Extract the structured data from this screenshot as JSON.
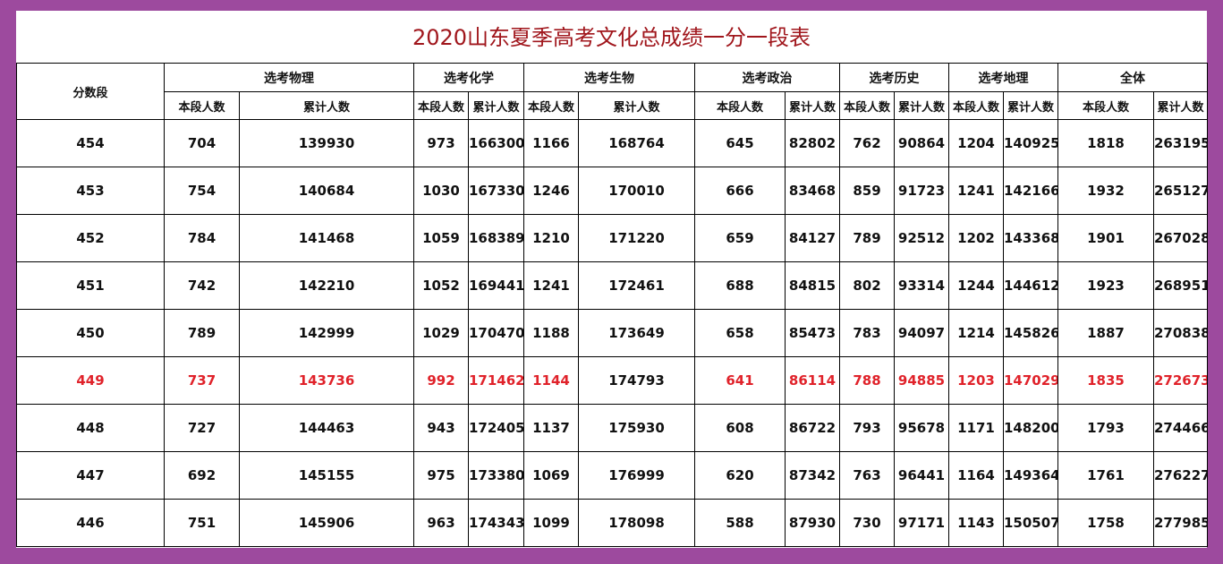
{
  "title": "2020山东夏季高考文化总成绩一分一段表",
  "score_header": "分数段",
  "groups": [
    "选考物理",
    "选考化学",
    "选考生物",
    "选考政治",
    "选考历史",
    "选考地理",
    "全体"
  ],
  "subheaders": [
    "本段人数",
    "累计人数",
    "本段人数",
    "累计人数",
    "本段人数",
    "累计人数",
    "本段人数",
    "累计人数",
    "本段人数",
    "累计人数",
    "本段人数",
    "累计人数",
    "本段人数",
    "累计人数"
  ],
  "rows": [
    [
      454,
      704,
      139930,
      973,
      166300,
      1166,
      168764,
      645,
      82802,
      762,
      90864,
      1204,
      140925,
      1818,
      263195
    ],
    [
      453,
      754,
      140684,
      1030,
      167330,
      1246,
      170010,
      666,
      83468,
      859,
      91723,
      1241,
      142166,
      1932,
      265127
    ],
    [
      452,
      784,
      141468,
      1059,
      168389,
      1210,
      171220,
      659,
      84127,
      789,
      92512,
      1202,
      143368,
      1901,
      267028
    ],
    [
      451,
      742,
      142210,
      1052,
      169441,
      1241,
      172461,
      688,
      84815,
      802,
      93314,
      1244,
      144612,
      1923,
      268951
    ],
    [
      450,
      789,
      142999,
      1029,
      170470,
      1188,
      173649,
      658,
      85473,
      783,
      94097,
      1214,
      145826,
      1887,
      270838
    ],
    [
      449,
      737,
      143736,
      992,
      171462,
      1144,
      174793,
      641,
      86114,
      788,
      94885,
      1203,
      147029,
      1835,
      272673
    ],
    [
      448,
      727,
      144463,
      943,
      172405,
      1137,
      175930,
      608,
      86722,
      793,
      95678,
      1171,
      148200,
      1793,
      274466
    ],
    [
      447,
      692,
      145155,
      975,
      173380,
      1069,
      176999,
      620,
      87342,
      763,
      96441,
      1164,
      149364,
      1761,
      276227
    ],
    [
      446,
      751,
      145906,
      963,
      174343,
      1099,
      178098,
      588,
      87930,
      730,
      97171,
      1143,
      150507,
      1758,
      277985
    ]
  ],
  "highlight_row": 5,
  "highlight_color": "#e0222a",
  "unhighlighted_cells": [
    [
      5,
      6
    ]
  ]
}
